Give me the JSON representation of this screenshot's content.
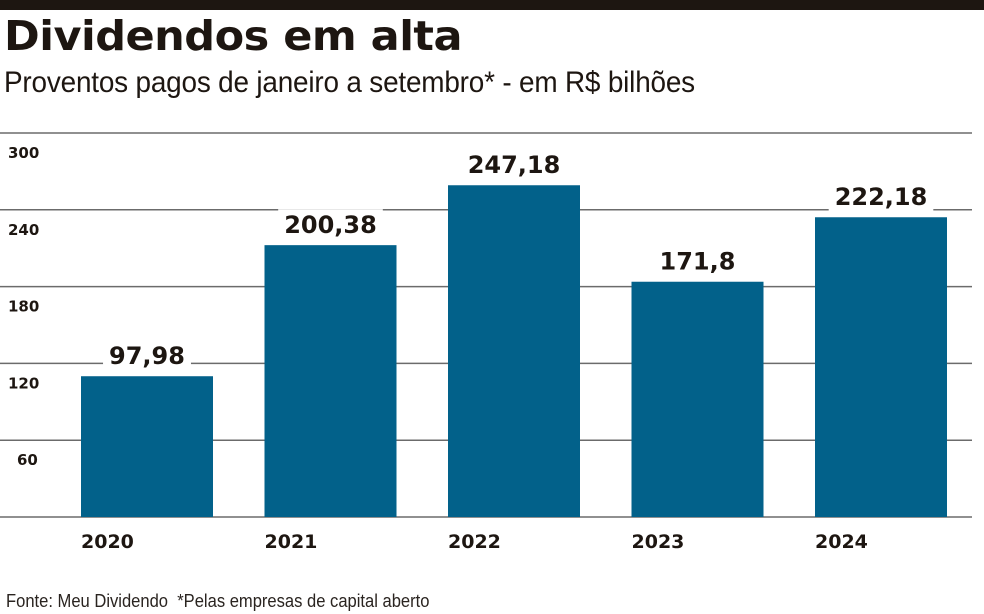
{
  "header": {
    "title": "Dividendos em alta",
    "subtitle": "Proventos pagos de janeiro a setembro* - em R$ bilhões"
  },
  "footer": {
    "source": "Fonte: Meu Dividendo",
    "note": "*Pelas empresas de capital aberto"
  },
  "colors": {
    "bar": "#02618a",
    "grid": "#6b6b6b",
    "text": "#1d1611",
    "top_rule": "#1d1611"
  },
  "chart_data": {
    "type": "bar",
    "title": "Dividendos em alta",
    "subtitle": "Proventos pagos de janeiro a setembro* - em R$ bilhões",
    "xlabel": "",
    "ylabel": "R$ bilhões",
    "categories": [
      "2020",
      "2021",
      "2022",
      "2023",
      "2024"
    ],
    "values": [
      97.98,
      200.38,
      247.18,
      171.8,
      222.18
    ],
    "value_labels": [
      "97,98",
      "200,38",
      "247,18",
      "171,8",
      "222,18"
    ],
    "ylim": [
      0,
      300
    ],
    "yticks": [
      60,
      120,
      180,
      240,
      300
    ],
    "ytick_labels": [
      "60",
      "120",
      "180",
      "240",
      "300"
    ],
    "grid": true,
    "legend": "none",
    "source": "Fonte: Meu Dividendo",
    "note": "*Pelas empresas de capital aberto"
  }
}
